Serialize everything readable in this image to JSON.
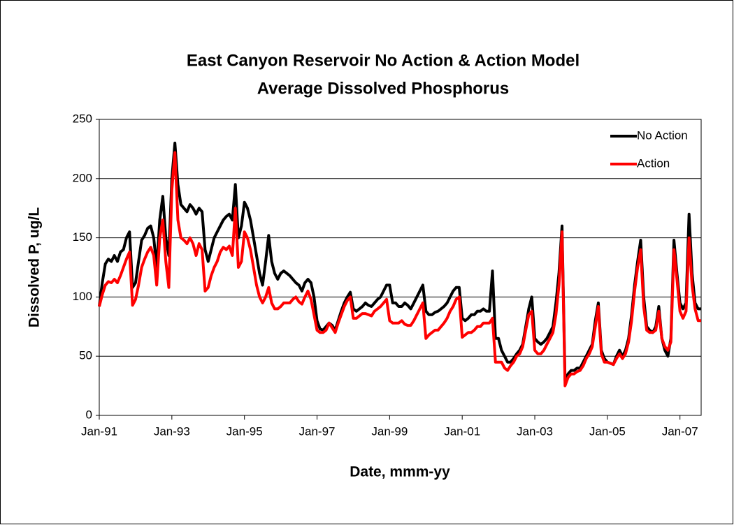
{
  "chart_data": {
    "type": "line",
    "title": [
      "East Canyon Reservoir No Action & Action Model",
      "Average Dissolved Phosphorus"
    ],
    "x_label": "Date, mmm-yy",
    "y_label": "Dissolved P, ug/L",
    "x": [
      "1991-01",
      "1991-02",
      "1991-03",
      "1991-04",
      "1991-05",
      "1991-06",
      "1991-07",
      "1991-08",
      "1991-09",
      "1991-10",
      "1991-11",
      "1991-12",
      "1992-01",
      "1992-02",
      "1992-03",
      "1992-04",
      "1992-05",
      "1992-06",
      "1992-07",
      "1992-08",
      "1992-09",
      "1992-10",
      "1992-11",
      "1992-12",
      "1993-01",
      "1993-02",
      "1993-03",
      "1993-04",
      "1993-05",
      "1993-06",
      "1993-07",
      "1993-08",
      "1993-09",
      "1993-10",
      "1993-11",
      "1993-12",
      "1994-01",
      "1994-02",
      "1994-03",
      "1994-04",
      "1994-05",
      "1994-06",
      "1994-07",
      "1994-08",
      "1994-09",
      "1994-10",
      "1994-11",
      "1994-12",
      "1995-01",
      "1995-02",
      "1995-03",
      "1995-04",
      "1995-05",
      "1995-06",
      "1995-07",
      "1995-08",
      "1995-09",
      "1995-10",
      "1995-11",
      "1995-12",
      "1996-01",
      "1996-02",
      "1996-03",
      "1996-04",
      "1996-05",
      "1996-06",
      "1996-07",
      "1996-08",
      "1996-09",
      "1996-10",
      "1996-11",
      "1996-12",
      "1997-01",
      "1997-02",
      "1997-03",
      "1997-04",
      "1997-05",
      "1997-06",
      "1997-07",
      "1997-08",
      "1997-09",
      "1997-10",
      "1997-11",
      "1997-12",
      "1998-01",
      "1998-02",
      "1998-03",
      "1998-04",
      "1998-05",
      "1998-06",
      "1998-07",
      "1998-08",
      "1998-09",
      "1998-10",
      "1998-11",
      "1998-12",
      "1999-01",
      "1999-02",
      "1999-03",
      "1999-04",
      "1999-05",
      "1999-06",
      "1999-07",
      "1999-08",
      "1999-09",
      "1999-10",
      "1999-11",
      "1999-12",
      "2000-01",
      "2000-02",
      "2000-03",
      "2000-04",
      "2000-05",
      "2000-06",
      "2000-07",
      "2000-08",
      "2000-09",
      "2000-10",
      "2000-11",
      "2000-12",
      "2001-01",
      "2001-02",
      "2001-03",
      "2001-04",
      "2001-05",
      "2001-06",
      "2001-07",
      "2001-08",
      "2001-09",
      "2001-10",
      "2001-11",
      "2001-12",
      "2002-01",
      "2002-02",
      "2002-03",
      "2002-04",
      "2002-05",
      "2002-06",
      "2002-07",
      "2002-08",
      "2002-09",
      "2002-10",
      "2002-11",
      "2002-12",
      "2003-01",
      "2003-02",
      "2003-03",
      "2003-04",
      "2003-05",
      "2003-06",
      "2003-07",
      "2003-08",
      "2003-09",
      "2003-10",
      "2003-11",
      "2003-12",
      "2004-01",
      "2004-02",
      "2004-03",
      "2004-04",
      "2004-05",
      "2004-06",
      "2004-07",
      "2004-08",
      "2004-09",
      "2004-10",
      "2004-11",
      "2004-12",
      "2005-01",
      "2005-02",
      "2005-03",
      "2005-04",
      "2005-05",
      "2005-06",
      "2005-07",
      "2005-08",
      "2005-09",
      "2005-10",
      "2005-11",
      "2005-12",
      "2006-01",
      "2006-02",
      "2006-03",
      "2006-04",
      "2006-05",
      "2006-06",
      "2006-07",
      "2006-08",
      "2006-09",
      "2006-10",
      "2006-11",
      "2006-12",
      "2007-01",
      "2007-02",
      "2007-03",
      "2007-04",
      "2007-05",
      "2007-06",
      "2007-07",
      "2007-08"
    ],
    "series": [
      {
        "name": "No Action",
        "color": "#000000",
        "values": [
          92,
          112,
          128,
          132,
          130,
          135,
          130,
          138,
          140,
          150,
          155,
          108,
          112,
          130,
          148,
          152,
          158,
          160,
          150,
          125,
          165,
          185,
          150,
          135,
          200,
          230,
          195,
          178,
          175,
          172,
          178,
          175,
          170,
          175,
          172,
          140,
          130,
          140,
          150,
          155,
          160,
          165,
          168,
          170,
          165,
          195,
          150,
          160,
          180,
          175,
          165,
          150,
          135,
          120,
          110,
          130,
          152,
          130,
          120,
          115,
          120,
          122,
          120,
          118,
          115,
          112,
          110,
          105,
          112,
          115,
          112,
          100,
          80,
          73,
          72,
          75,
          78,
          76,
          72,
          80,
          88,
          95,
          100,
          104,
          90,
          88,
          90,
          92,
          95,
          93,
          92,
          95,
          98,
          100,
          105,
          110,
          110,
          95,
          95,
          92,
          92,
          95,
          93,
          90,
          95,
          100,
          105,
          110,
          88,
          85,
          85,
          87,
          88,
          90,
          92,
          95,
          100,
          105,
          108,
          108,
          82,
          80,
          82,
          85,
          85,
          88,
          88,
          90,
          88,
          88,
          122,
          65,
          65,
          55,
          50,
          45,
          45,
          48,
          52,
          55,
          60,
          75,
          90,
          100,
          65,
          62,
          60,
          62,
          65,
          70,
          75,
          95,
          120,
          160,
          30,
          35,
          38,
          38,
          40,
          40,
          45,
          50,
          55,
          60,
          80,
          95,
          55,
          48,
          45,
          44,
          43,
          50,
          55,
          50,
          55,
          65,
          85,
          110,
          130,
          148,
          100,
          75,
          72,
          70,
          75,
          92,
          65,
          55,
          50,
          65,
          148,
          120,
          95,
          90,
          95,
          170,
          120,
          95,
          90,
          90
        ]
      },
      {
        "name": "Action",
        "color": "#ff0000",
        "values": [
          92,
          102,
          110,
          113,
          112,
          115,
          112,
          118,
          125,
          132,
          138,
          93,
          98,
          110,
          125,
          132,
          138,
          142,
          135,
          110,
          150,
          165,
          130,
          108,
          190,
          222,
          165,
          150,
          148,
          145,
          150,
          145,
          135,
          145,
          140,
          105,
          108,
          118,
          125,
          130,
          138,
          142,
          140,
          143,
          135,
          175,
          125,
          130,
          155,
          150,
          140,
          125,
          110,
          100,
          95,
          100,
          108,
          95,
          90,
          90,
          92,
          95,
          95,
          95,
          98,
          100,
          96,
          94,
          100,
          105,
          98,
          85,
          72,
          70,
          70,
          72,
          78,
          74,
          70,
          78,
          85,
          92,
          97,
          100,
          82,
          82,
          84,
          86,
          86,
          85,
          84,
          88,
          90,
          92,
          95,
          98,
          80,
          78,
          78,
          78,
          80,
          77,
          76,
          76,
          80,
          85,
          90,
          95,
          65,
          68,
          70,
          72,
          72,
          75,
          78,
          82,
          88,
          92,
          98,
          100,
          66,
          68,
          70,
          70,
          72,
          75,
          75,
          78,
          78,
          78,
          82,
          45,
          45,
          45,
          40,
          38,
          42,
          45,
          50,
          52,
          58,
          72,
          85,
          88,
          55,
          52,
          52,
          55,
          60,
          65,
          70,
          85,
          110,
          155,
          25,
          32,
          35,
          35,
          37,
          38,
          42,
          48,
          52,
          58,
          75,
          92,
          52,
          45,
          45,
          44,
          43,
          48,
          52,
          48,
          52,
          62,
          80,
          105,
          125,
          140,
          92,
          72,
          70,
          70,
          72,
          88,
          65,
          58,
          55,
          62,
          140,
          115,
          88,
          82,
          88,
          150,
          110,
          90,
          80,
          80
        ]
      }
    ],
    "xlim": [
      "1991-01",
      "2007-08"
    ],
    "xticks": [
      {
        "value": "1991-01",
        "label": "Jan-91"
      },
      {
        "value": "1993-01",
        "label": "Jan-93"
      },
      {
        "value": "1995-01",
        "label": "Jan-95"
      },
      {
        "value": "1997-01",
        "label": "Jan-97"
      },
      {
        "value": "1999-01",
        "label": "Jan-99"
      },
      {
        "value": "2001-01",
        "label": "Jan-01"
      },
      {
        "value": "2003-01",
        "label": "Jan-03"
      },
      {
        "value": "2005-01",
        "label": "Jan-05"
      },
      {
        "value": "2007-01",
        "label": "Jan-07"
      }
    ],
    "ylim": [
      0,
      250
    ],
    "yticks": [
      0,
      50,
      100,
      150,
      200,
      250
    ],
    "grid": true,
    "legend": "upper right"
  }
}
